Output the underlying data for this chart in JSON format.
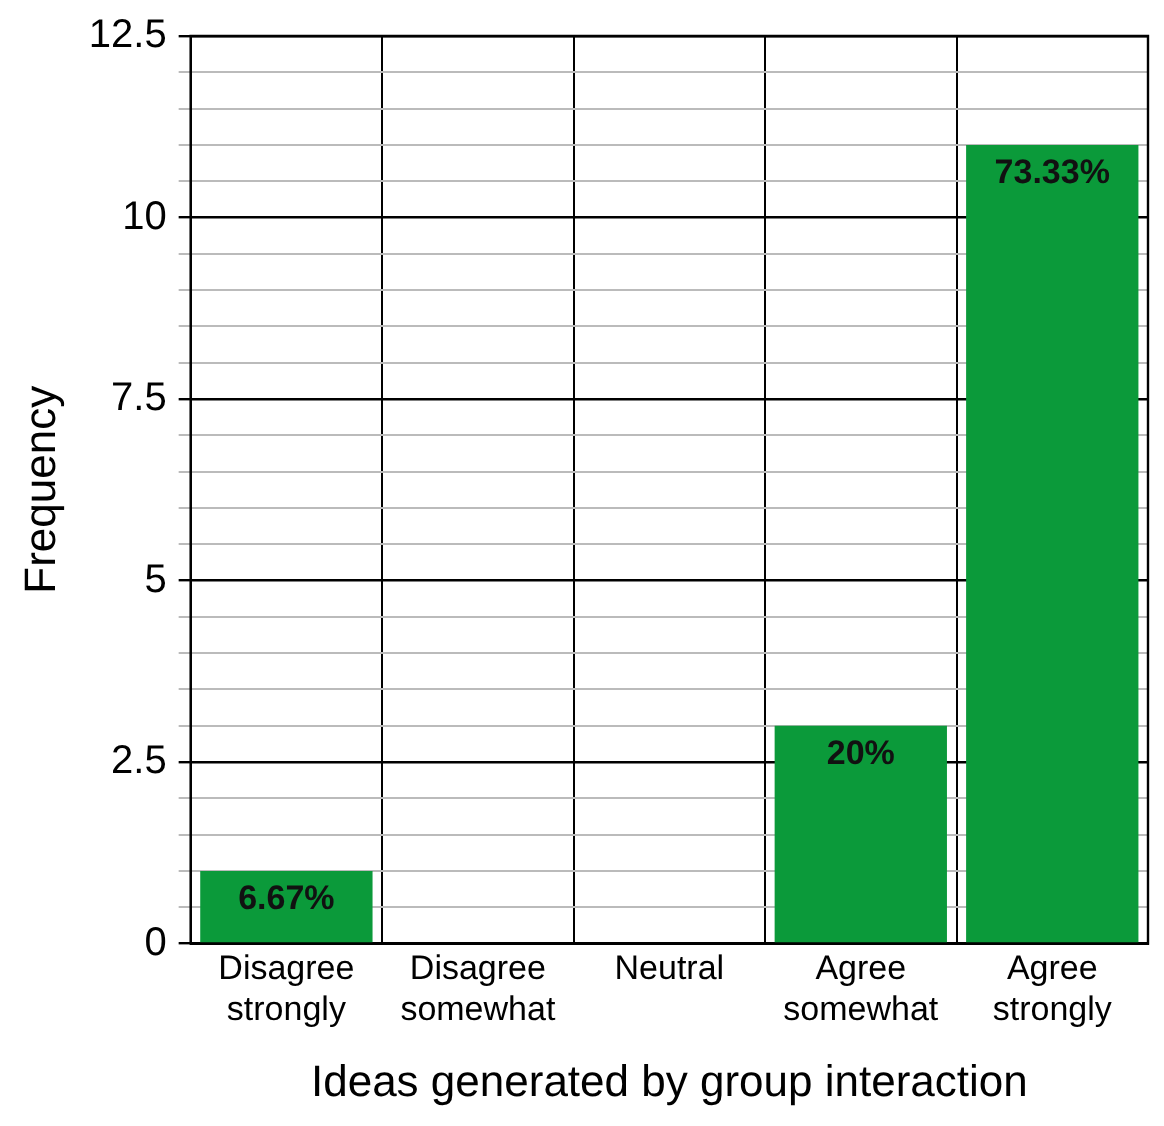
{
  "chart_data": {
    "type": "bar",
    "xlabel": "Ideas generated by group interaction",
    "ylabel": "Frequency",
    "categories": [
      "Disagree strongly",
      "Disagree somewhat",
      "Neutral",
      "Agree somewhat",
      "Agree strongly"
    ],
    "values": [
      1,
      0,
      0,
      3,
      11
    ],
    "color": "#0b9a3a",
    "annotations": [
      {
        "text": "6.67%",
        "x": "Disagree strongly",
        "y": 1
      },
      {
        "text": "20%",
        "x": "Agree somewhat",
        "y": 3
      },
      {
        "text": "73.33%",
        "x": "Agree strongly",
        "y": 11
      }
    ],
    "ylim": [
      0,
      12.5
    ],
    "yticks": [
      0,
      {
        "value": 0.5,
        "label": null
      },
      {
        "value": 1,
        "label": null
      },
      {
        "value": 1.5,
        "label": null
      },
      {
        "value": 2,
        "label": null
      },
      2.5,
      {
        "value": 3,
        "label": null
      },
      {
        "value": 3.5,
        "label": null
      },
      {
        "value": 4,
        "label": null
      },
      {
        "value": 4.5,
        "label": null
      },
      5,
      {
        "value": 5.5,
        "label": null
      },
      {
        "value": 6,
        "label": null
      },
      {
        "value": 6.5,
        "label": null
      },
      {
        "value": 7,
        "label": null
      },
      7.5,
      {
        "value": 8,
        "label": null
      },
      {
        "value": 8.5,
        "label": null
      },
      {
        "value": 9,
        "label": null
      },
      {
        "value": 9.5,
        "label": null
      },
      10,
      {
        "value": 10.5,
        "label": null
      },
      {
        "value": 11,
        "label": null
      },
      {
        "value": 11.5,
        "label": null
      },
      {
        "value": 12,
        "label": null
      },
      12.5
    ],
    "grid": true,
    "legend": false
  }
}
